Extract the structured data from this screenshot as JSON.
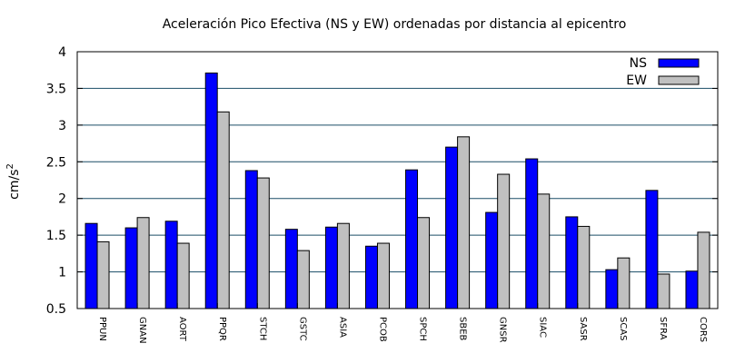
{
  "chart_data": {
    "type": "bar",
    "title": "Aceleración Pico Efectiva (NS y EW) ordenadas por distancia al epicentro",
    "xlabel": "",
    "ylabel": "cm/s",
    "ylabel_sup": "2",
    "ylim": [
      0.5,
      4
    ],
    "yticks": [
      "0.5",
      "1",
      "1.5",
      "2",
      "2.5",
      "3",
      "3.5",
      "4"
    ],
    "grid": true,
    "legend_position": "top-right",
    "categories": [
      "PPUN",
      "GNAN",
      "AORT",
      "PPQR",
      "STCH",
      "GSTC",
      "ASIA",
      "PCOB",
      "SPCH",
      "SBEB",
      "GNSR",
      "SIAC",
      "SASR",
      "SCAS",
      "SFRA",
      "CORS"
    ],
    "series": [
      {
        "name": "NS",
        "color": "#0000ff",
        "values": [
          1.66,
          1.6,
          1.69,
          3.71,
          2.38,
          1.58,
          1.61,
          1.35,
          2.39,
          2.7,
          1.81,
          2.54,
          1.75,
          1.03,
          2.11,
          1.01
        ]
      },
      {
        "name": "EW",
        "color": "#c0c0c0",
        "values": [
          1.41,
          1.74,
          1.39,
          3.18,
          2.28,
          1.29,
          1.66,
          1.39,
          1.74,
          2.84,
          2.33,
          2.06,
          1.62,
          1.19,
          0.97,
          1.54
        ]
      }
    ]
  }
}
